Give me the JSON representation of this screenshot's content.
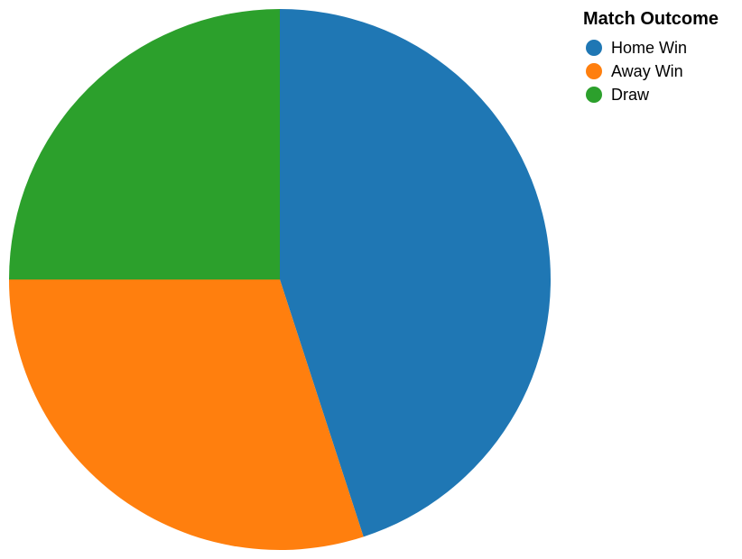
{
  "chart_data": {
    "type": "pie",
    "legend": {
      "title": "Match Outcome",
      "placement": "top-right"
    },
    "slices": [
      {
        "label": "Home Win",
        "value": 45,
        "color": "#1f77b4"
      },
      {
        "label": "Away Win",
        "value": 30,
        "color": "#ff7f0e"
      },
      {
        "label": "Draw",
        "value": 25,
        "color": "#2ca02c"
      }
    ],
    "start_angle_deg": 0,
    "direction": "clockwise"
  }
}
